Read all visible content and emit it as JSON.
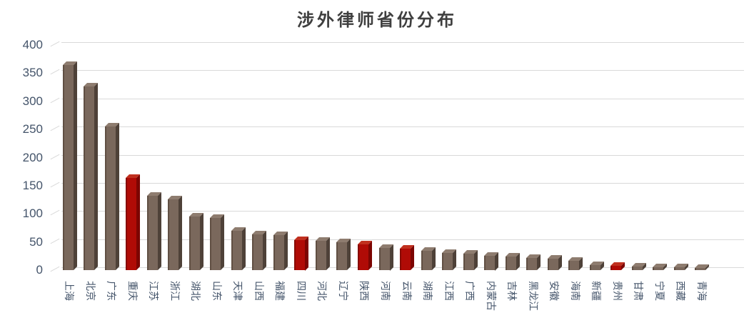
{
  "title": "涉外律师省份分布",
  "chart_data": {
    "type": "bar",
    "style": "3d-column",
    "title": "涉外律师省份分布",
    "xlabel": "",
    "ylabel": "",
    "categories": [
      "上海",
      "北京",
      "广东",
      "重庆",
      "江苏",
      "浙江",
      "湖北",
      "山东",
      "天津",
      "山西",
      "福建",
      "四川",
      "河北",
      "辽宁",
      "陕西",
      "河南",
      "云南",
      "湖南",
      "江西",
      "广西",
      "内蒙古",
      "吉林",
      "黑龙江",
      "安徽",
      "海南",
      "新疆",
      "贵州",
      "甘肃",
      "宁夏",
      "西藏",
      "青海"
    ],
    "values": [
      365,
      326,
      255,
      164,
      132,
      126,
      95,
      93,
      70,
      64,
      62,
      54,
      52,
      50,
      46,
      40,
      38,
      34,
      31,
      29,
      26,
      24,
      22,
      20,
      16,
      9,
      8,
      6,
      5,
      5,
      4
    ],
    "highlight_indices": [
      3,
      11,
      14,
      16,
      26
    ],
    "highlighted_categories": [
      "重庆",
      "四川",
      "陕西",
      "云南",
      "贵州"
    ],
    "ylim": [
      0,
      400
    ],
    "ytick_step": 50,
    "ytick_labels": [
      "0",
      "50",
      "100",
      "150",
      "200",
      "250",
      "300",
      "350",
      "400"
    ],
    "grid": "horizontal",
    "legend": "none",
    "colors": {
      "bar_default": "#7a685c",
      "bar_default_top": "#8e7c6f",
      "bar_default_side": "#4e4138",
      "bar_highlight": "#b00b06",
      "bar_highlight_top": "#c0301f",
      "bar_highlight_side": "#7c0502",
      "gridline": "#d9d9d9",
      "axis_label": "#44546a",
      "title": "#3f3f3f",
      "background": "#ffffff"
    }
  }
}
